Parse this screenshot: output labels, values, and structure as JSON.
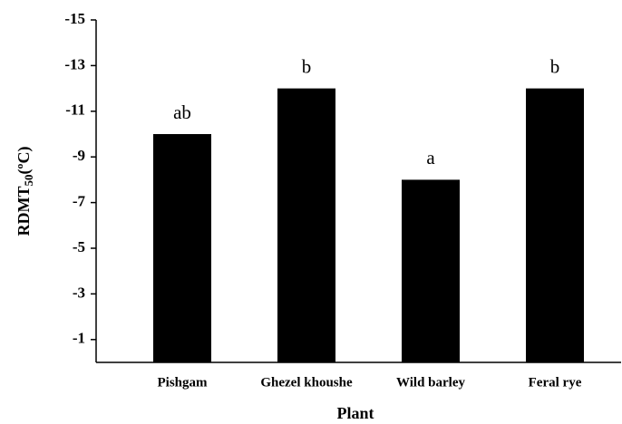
{
  "chart_data": {
    "type": "bar",
    "x_label": "Plant",
    "y_label": {
      "text": "RDMT",
      "subscript": "50",
      "suffix": "(ºC)"
    },
    "categories": [
      "Pishgam",
      "Ghezel khoushe",
      "Wild barley",
      "Feral rye"
    ],
    "values": [
      -10,
      -12,
      -8,
      -12
    ],
    "annotations": [
      "ab",
      "b",
      "a",
      "b"
    ],
    "color": "#000000",
    "ylim": [
      0,
      -15
    ],
    "yticks": [
      -1,
      -3,
      -5,
      -7,
      -9,
      -11,
      -13,
      -15
    ]
  }
}
